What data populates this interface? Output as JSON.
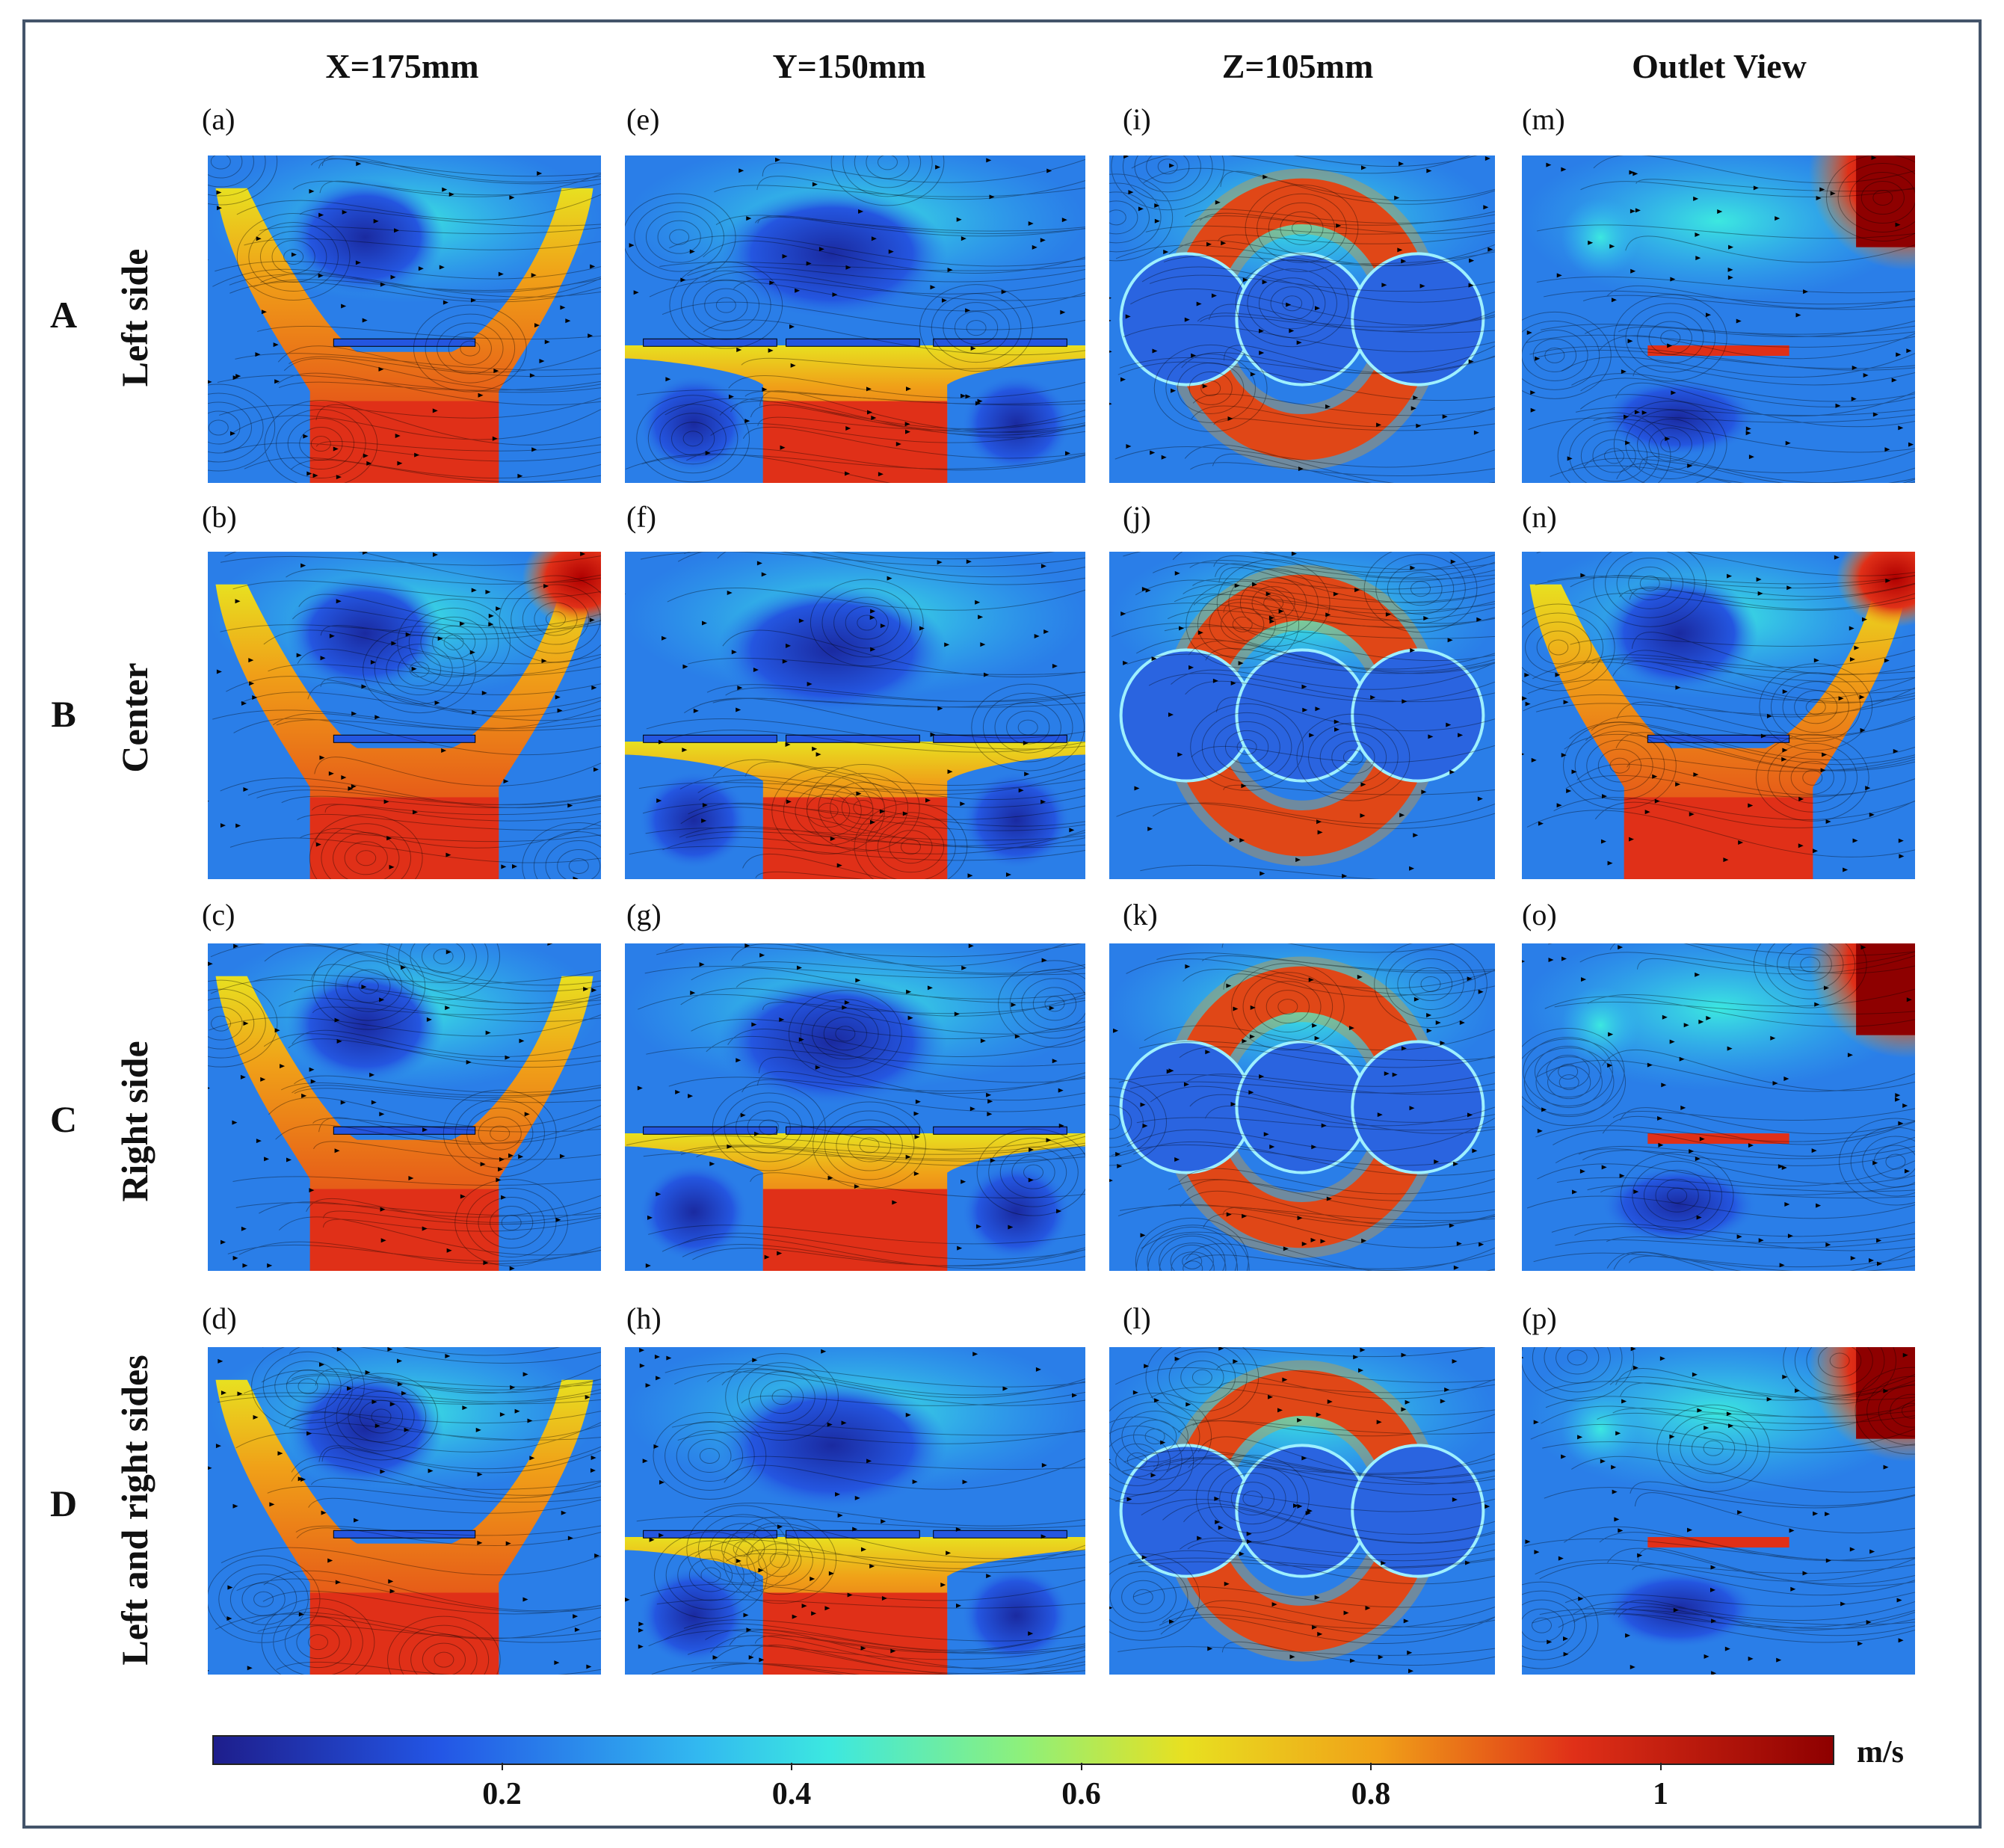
{
  "columns": [
    {
      "title": "X=175mm"
    },
    {
      "title": "Y=150mm"
    },
    {
      "title": "Z=105mm"
    },
    {
      "title": "Outlet View"
    }
  ],
  "rows": [
    {
      "letter": "A",
      "label": "Left side"
    },
    {
      "letter": "B",
      "label": "Center"
    },
    {
      "letter": "C",
      "label": "Right side"
    },
    {
      "letter": "D",
      "label": "Left and right sides"
    }
  ],
  "panel_labels": [
    [
      "(a)",
      "(e)",
      "(i)",
      "(m)"
    ],
    [
      "(b)",
      "(f)",
      "(j)",
      "(n)"
    ],
    [
      "(c)",
      "(g)",
      "(k)",
      "(o)"
    ],
    [
      "(d)",
      "(h)",
      "(l)",
      "(p)"
    ]
  ],
  "colorbar": {
    "unit": "m/s",
    "ticks": [
      "0.2",
      "0.4",
      "0.6",
      "0.8",
      "1"
    ],
    "tick_values": [
      0.2,
      0.4,
      0.6,
      0.8,
      1.0
    ],
    "range": [
      0,
      1.12
    ],
    "colormap": "jet"
  },
  "colors": {
    "frame": "#44546a",
    "low": "#1e1e8c",
    "mid": "#3ce8e0",
    "high": "#8e0000"
  }
}
